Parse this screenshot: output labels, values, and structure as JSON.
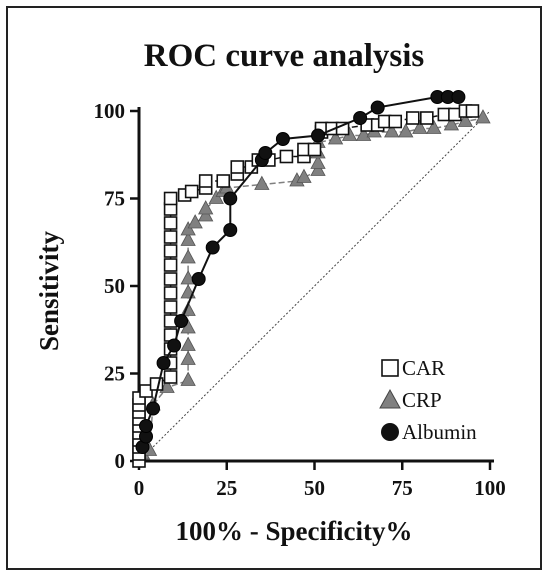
{
  "chart_data": {
    "type": "line",
    "title": "ROC curve analysis",
    "xlabel": "100% - Specificity%",
    "ylabel": "Sensitivity",
    "xlim": [
      0,
      100
    ],
    "ylim": [
      0,
      100
    ],
    "x_ticks": [
      0,
      25,
      50,
      75,
      100
    ],
    "y_ticks": [
      0,
      25,
      50,
      75,
      100
    ],
    "grid": false,
    "legend_position": "bottom-right",
    "reference_line": {
      "from": [
        0,
        0
      ],
      "to": [
        100,
        100
      ],
      "style": "dotted"
    },
    "series": [
      {
        "name": "CAR",
        "marker": "open-square",
        "color": "#111111",
        "line_style": "dashed",
        "points": [
          [
            0,
            0
          ],
          [
            0,
            2
          ],
          [
            0,
            4
          ],
          [
            0,
            6
          ],
          [
            0,
            8
          ],
          [
            0,
            10
          ],
          [
            0,
            12
          ],
          [
            0,
            14
          ],
          [
            0,
            16
          ],
          [
            0,
            18
          ],
          [
            2,
            20
          ],
          [
            5,
            22
          ],
          [
            9,
            24
          ],
          [
            9,
            28
          ],
          [
            9,
            32
          ],
          [
            9,
            36
          ],
          [
            9,
            40
          ],
          [
            9,
            44
          ],
          [
            9,
            48
          ],
          [
            9,
            52
          ],
          [
            9,
            56
          ],
          [
            9,
            60
          ],
          [
            9,
            64
          ],
          [
            9,
            68
          ],
          [
            9,
            72
          ],
          [
            9,
            75
          ],
          [
            13,
            76
          ],
          [
            15,
            77
          ],
          [
            19,
            78
          ],
          [
            19,
            80
          ],
          [
            24,
            80
          ],
          [
            28,
            82
          ],
          [
            28,
            84
          ],
          [
            32,
            84
          ],
          [
            34,
            86
          ],
          [
            37,
            86
          ],
          [
            42,
            87
          ],
          [
            47,
            87
          ],
          [
            47,
            89
          ],
          [
            50,
            89
          ],
          [
            52,
            94
          ],
          [
            52,
            95
          ],
          [
            55,
            95
          ],
          [
            58,
            95
          ],
          [
            65,
            96
          ],
          [
            68,
            96
          ],
          [
            70,
            97
          ],
          [
            73,
            97
          ],
          [
            78,
            98
          ],
          [
            82,
            98
          ],
          [
            87,
            99
          ],
          [
            90,
            99
          ],
          [
            93,
            100
          ],
          [
            95,
            100
          ]
        ]
      },
      {
        "name": "CRP",
        "marker": "filled-triangle",
        "color": "#808080",
        "line_style": "dashed",
        "points": [
          [
            1,
            2
          ],
          [
            3,
            3
          ],
          [
            4,
            16
          ],
          [
            8,
            21
          ],
          [
            14,
            23
          ],
          [
            14,
            29
          ],
          [
            14,
            33
          ],
          [
            14,
            38
          ],
          [
            14,
            43
          ],
          [
            14,
            48
          ],
          [
            14,
            52
          ],
          [
            14,
            58
          ],
          [
            14,
            63
          ],
          [
            14,
            66
          ],
          [
            16,
            68
          ],
          [
            19,
            70
          ],
          [
            19,
            72
          ],
          [
            22,
            75
          ],
          [
            24,
            77
          ],
          [
            25,
            78
          ],
          [
            35,
            79
          ],
          [
            45,
            80
          ],
          [
            47,
            81
          ],
          [
            51,
            83
          ],
          [
            51,
            85
          ],
          [
            51,
            88
          ],
          [
            51,
            91
          ],
          [
            56,
            92
          ],
          [
            60,
            93
          ],
          [
            64,
            93
          ],
          [
            67,
            94
          ],
          [
            72,
            94
          ],
          [
            76,
            94
          ],
          [
            80,
            95
          ],
          [
            84,
            95
          ],
          [
            89,
            96
          ],
          [
            93,
            97
          ],
          [
            98,
            98
          ]
        ]
      },
      {
        "name": "Albumin",
        "marker": "filled-circle",
        "color": "#111111",
        "line_style": "solid",
        "points": [
          [
            1,
            4
          ],
          [
            2,
            7
          ],
          [
            2,
            10
          ],
          [
            4,
            15
          ],
          [
            7,
            28
          ],
          [
            10,
            33
          ],
          [
            12,
            40
          ],
          [
            17,
            52
          ],
          [
            21,
            61
          ],
          [
            26,
            66
          ],
          [
            26,
            75
          ],
          [
            35,
            86
          ],
          [
            36,
            88
          ],
          [
            41,
            92
          ],
          [
            51,
            93
          ],
          [
            63,
            98
          ],
          [
            68,
            101
          ],
          [
            85,
            104
          ],
          [
            88,
            104
          ],
          [
            91,
            104
          ]
        ]
      }
    ]
  }
}
